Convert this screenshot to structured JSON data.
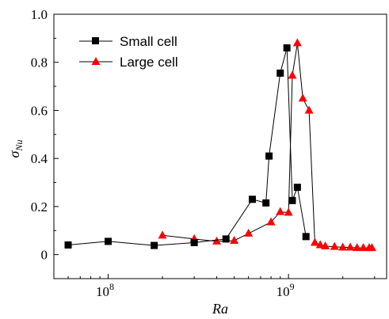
{
  "chart_data": {
    "type": "line",
    "xlabel": "Ra",
    "ylabel": "σ_Nu",
    "xscale": "log",
    "xlim": [
      50000000,
      3500000000
    ],
    "ylim": [
      -0.1,
      1.0
    ],
    "x_ticks": [
      {
        "value": 100000000,
        "mantissa": "10",
        "exp": "8"
      },
      {
        "value": 1000000000,
        "mantissa": "10",
        "exp": "9"
      }
    ],
    "y_ticks": [
      {
        "value": 0,
        "label": "0"
      },
      {
        "value": 0.2,
        "label": "0.2"
      },
      {
        "value": 0.4,
        "label": "0.4"
      },
      {
        "value": 0.6,
        "label": "0.6"
      },
      {
        "value": 0.8,
        "label": "0.8"
      },
      {
        "value": 1.0,
        "label": "1.0"
      }
    ],
    "legend_position": "top-left",
    "series": [
      {
        "name": "Small cell",
        "marker": "square",
        "color": "#000000",
        "x": [
          60000000,
          100000000,
          180000000,
          300000000,
          450000000,
          630000000,
          750000000,
          780000000,
          900000000,
          980000000,
          1050000000,
          1120000000,
          1250000000
        ],
        "y": [
          0.04,
          0.055,
          0.038,
          0.05,
          0.065,
          0.23,
          0.215,
          0.41,
          0.755,
          0.86,
          0.225,
          0.28,
          0.075
        ]
      },
      {
        "name": "Large cell",
        "marker": "triangle",
        "color": "#ff0000",
        "x": [
          200000000,
          300000000,
          400000000,
          500000000,
          600000000,
          800000000,
          900000000,
          1000000000,
          1050000000,
          1120000000,
          1200000000,
          1300000000,
          1400000000,
          1500000000,
          1600000000,
          1800000000,
          2000000000,
          2200000000,
          2400000000,
          2600000000,
          2800000000,
          2900000000
        ],
        "y": [
          0.08,
          0.065,
          0.055,
          0.058,
          0.088,
          0.135,
          0.178,
          0.175,
          0.745,
          0.88,
          0.65,
          0.6,
          0.05,
          0.04,
          0.035,
          0.033,
          0.03,
          0.03,
          0.028,
          0.028,
          0.028,
          0.028
        ]
      }
    ]
  }
}
